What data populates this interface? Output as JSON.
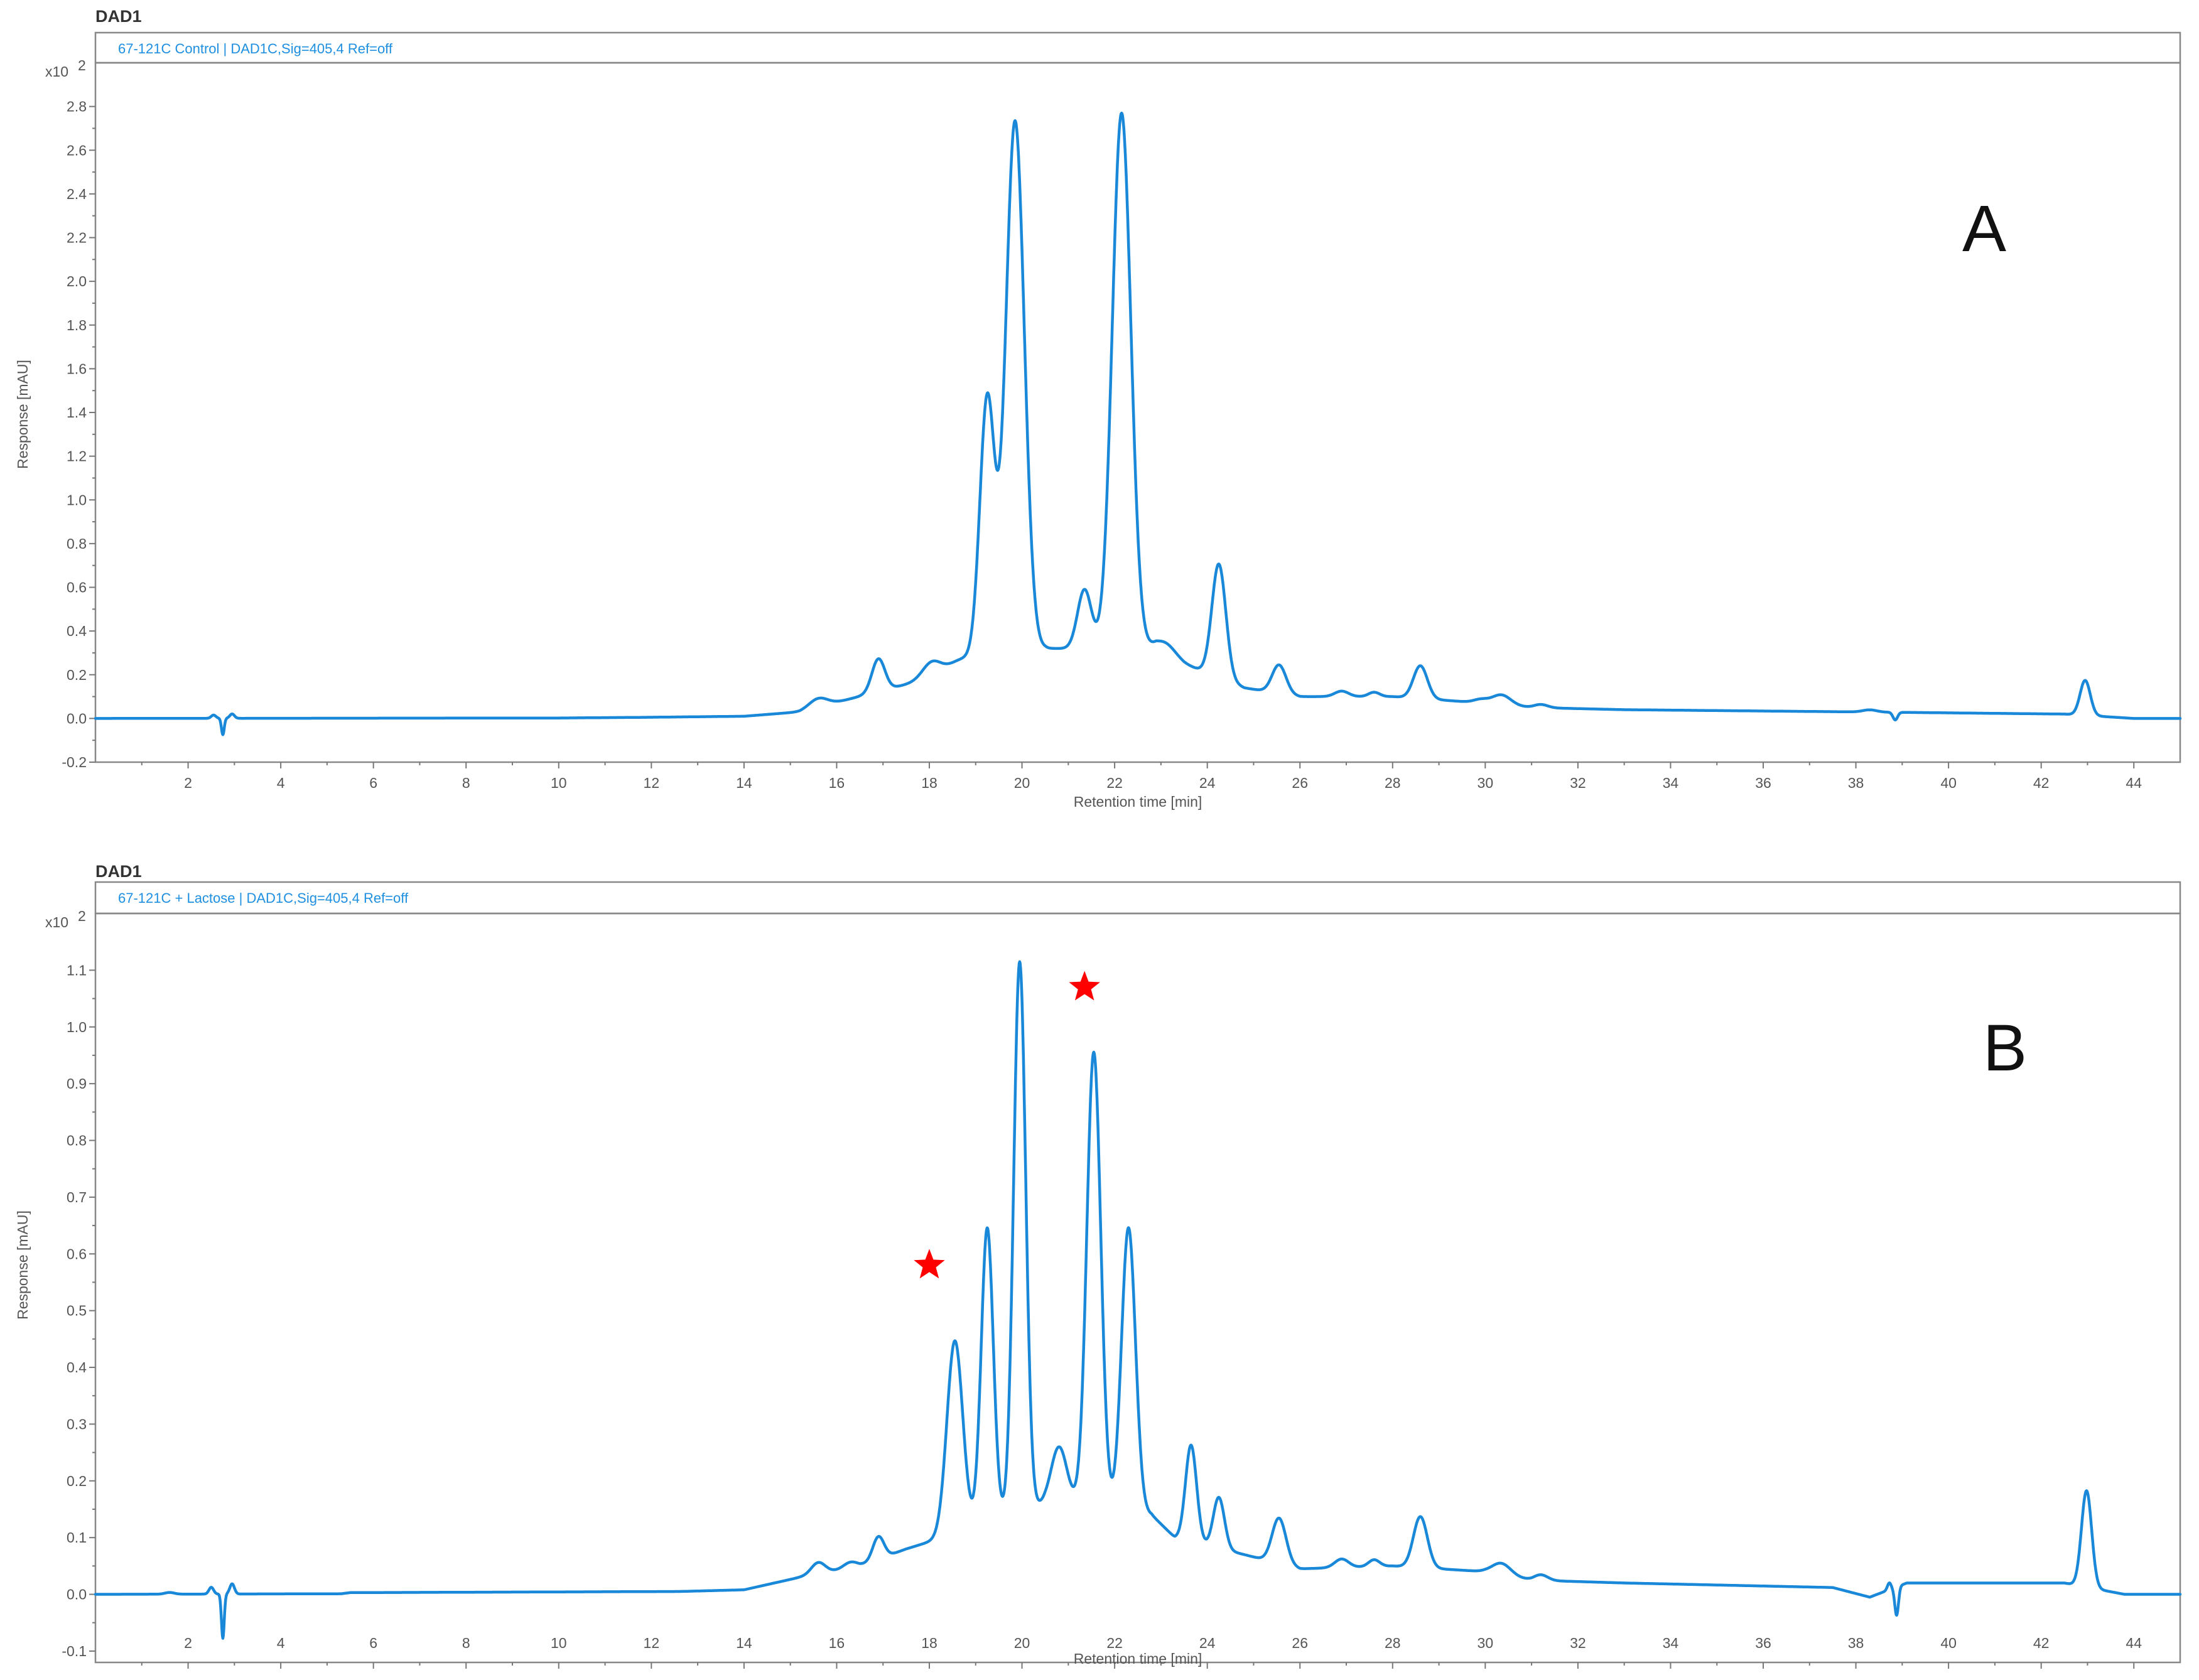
{
  "chart_data": [
    {
      "type": "line",
      "panel_title": "DAD1",
      "caption": "67-121C Control | DAD1C,Sig=405,4  Ref=off",
      "y_multiplier": "x10",
      "y_multiplier_exp": "2",
      "ylabel": "Response [mAU]",
      "xlabel": "Retention time [min]",
      "panel_letter": "A",
      "xlim": [
        0,
        45
      ],
      "ylim": [
        -0.2,
        3.0
      ],
      "x_ticks": [
        2,
        4,
        6,
        8,
        10,
        12,
        14,
        16,
        18,
        20,
        22,
        24,
        26,
        28,
        30,
        32,
        34,
        36,
        38,
        40,
        42,
        44
      ],
      "y_ticks": [
        -0.2,
        0.0,
        0.2,
        0.4,
        0.6,
        0.8,
        1.0,
        1.2,
        1.4,
        1.6,
        1.8,
        2.0,
        2.2,
        2.4,
        2.6,
        2.8
      ],
      "y_tick_labels": [
        "-0.2",
        "0.0",
        "0.2",
        "0.4",
        "0.6",
        "0.8",
        "1.0",
        "1.2",
        "1.4",
        "1.6",
        "1.8",
        "2.0",
        "2.2",
        "2.4",
        "2.6",
        "2.8"
      ],
      "baseline": [
        [
          0,
          0.0
        ],
        [
          10,
          0.002
        ],
        [
          11.8,
          0.005
        ],
        [
          14,
          0.01
        ],
        [
          15.2,
          0.03
        ],
        [
          20.5,
          0.32
        ],
        [
          22.9,
          0.32
        ],
        [
          23.5,
          0.25
        ],
        [
          24.8,
          0.14
        ],
        [
          26,
          0.1
        ],
        [
          28,
          0.1
        ],
        [
          30,
          0.07
        ],
        [
          31,
          0.05
        ],
        [
          33,
          0.04
        ],
        [
          38,
          0.03
        ],
        [
          42.5,
          0.02
        ],
        [
          44,
          0.0
        ],
        [
          45,
          0.0
        ]
      ],
      "peaks": [
        {
          "rt": 2.55,
          "height": 0.015,
          "width": 0.05
        },
        {
          "rt": 2.75,
          "height": -0.075,
          "width": 0.03
        },
        {
          "rt": 2.95,
          "height": 0.02,
          "width": 0.05
        },
        {
          "rt": 15.6,
          "height": 0.04,
          "width": 0.2
        },
        {
          "rt": 16.9,
          "height": 0.15,
          "width": 0.14
        },
        {
          "rt": 18.05,
          "height": 0.07,
          "width": 0.2
        },
        {
          "rt": 18.7,
          "height": 0.05,
          "width": 0.3
        },
        {
          "rt": 19.25,
          "height": 1.2,
          "width": 0.16
        },
        {
          "rt": 19.85,
          "height": 2.45,
          "width": 0.2
        },
        {
          "rt": 21.35,
          "height": 0.27,
          "width": 0.15
        },
        {
          "rt": 22.15,
          "height": 2.45,
          "width": 0.2
        },
        {
          "rt": 23.1,
          "height": 0.05,
          "width": 0.22
        },
        {
          "rt": 24.25,
          "height": 0.52,
          "width": 0.15
        },
        {
          "rt": 25.55,
          "height": 0.13,
          "width": 0.15
        },
        {
          "rt": 26.9,
          "height": 0.025,
          "width": 0.15
        },
        {
          "rt": 27.6,
          "height": 0.02,
          "width": 0.12
        },
        {
          "rt": 28.6,
          "height": 0.15,
          "width": 0.15
        },
        {
          "rt": 29.9,
          "height": 0.015,
          "width": 0.15
        },
        {
          "rt": 30.35,
          "height": 0.045,
          "width": 0.2
        },
        {
          "rt": 31.2,
          "height": 0.015,
          "width": 0.15
        },
        {
          "rt": 38.3,
          "height": 0.01,
          "width": 0.15
        },
        {
          "rt": 38.85,
          "height": -0.035,
          "width": 0.05
        },
        {
          "rt": 42.95,
          "height": 0.16,
          "width": 0.11
        }
      ]
    },
    {
      "type": "line",
      "panel_title": "DAD1",
      "caption": "67-121C + Lactose  | DAD1C,Sig=405,4  Ref=off",
      "y_multiplier": "x10",
      "y_multiplier_exp": "2",
      "ylabel": "Response [mAU]",
      "xlabel": "Retention time [min]",
      "panel_letter": "B",
      "xlim": [
        0,
        45
      ],
      "ylim": [
        -0.12,
        1.2
      ],
      "x_ticks": [
        2,
        4,
        6,
        8,
        10,
        12,
        14,
        16,
        18,
        20,
        22,
        24,
        26,
        28,
        30,
        32,
        34,
        36,
        38,
        40,
        42,
        44
      ],
      "y_ticks": [
        -0.1,
        0.0,
        0.1,
        0.2,
        0.3,
        0.4,
        0.5,
        0.6,
        0.7,
        0.8,
        0.9,
        1.0,
        1.1
      ],
      "y_tick_labels": [
        "-0.1",
        "0.0",
        "0.1",
        "0.2",
        "0.3",
        "0.4",
        "0.5",
        "0.6",
        "0.7",
        "0.8",
        "0.9",
        "1.0",
        "1.1"
      ],
      "baseline": [
        [
          0,
          0.0
        ],
        [
          5.3,
          0.001
        ],
        [
          5.5,
          0.003
        ],
        [
          12.6,
          0.005
        ],
        [
          14,
          0.008
        ],
        [
          15.2,
          0.03
        ],
        [
          16.5,
          0.05
        ],
        [
          17.5,
          0.08
        ],
        [
          18.3,
          0.1
        ],
        [
          20.5,
          0.16
        ],
        [
          21.2,
          0.16
        ],
        [
          22.8,
          0.14
        ],
        [
          23.3,
          0.1
        ],
        [
          24.8,
          0.07
        ],
        [
          26,
          0.045
        ],
        [
          28,
          0.05
        ],
        [
          30,
          0.04
        ],
        [
          31,
          0.025
        ],
        [
          33,
          0.02
        ],
        [
          37.5,
          0.012
        ],
        [
          38.3,
          -0.005
        ],
        [
          39.1,
          0.02
        ],
        [
          42.5,
          0.02
        ],
        [
          43.8,
          0.0
        ],
        [
          45,
          0.0
        ]
      ],
      "peaks": [
        {
          "rt": 1.6,
          "height": 0.003,
          "width": 0.1
        },
        {
          "rt": 2.5,
          "height": 0.012,
          "width": 0.05
        },
        {
          "rt": 2.75,
          "height": -0.078,
          "width": 0.03
        },
        {
          "rt": 2.95,
          "height": 0.018,
          "width": 0.05
        },
        {
          "rt": 15.6,
          "height": 0.02,
          "width": 0.15
        },
        {
          "rt": 16.3,
          "height": 0.01,
          "width": 0.15
        },
        {
          "rt": 16.9,
          "height": 0.04,
          "width": 0.12
        },
        {
          "rt": 18.55,
          "height": 0.34,
          "width": 0.17
        },
        {
          "rt": 19.25,
          "height": 0.52,
          "width": 0.13
        },
        {
          "rt": 19.95,
          "height": 0.97,
          "width": 0.13
        },
        {
          "rt": 20.8,
          "height": 0.1,
          "width": 0.17
        },
        {
          "rt": 21.55,
          "height": 0.8,
          "width": 0.15
        },
        {
          "rt": 22.3,
          "height": 0.5,
          "width": 0.15
        },
        {
          "rt": 23.65,
          "height": 0.17,
          "width": 0.12
        },
        {
          "rt": 24.25,
          "height": 0.09,
          "width": 0.12
        },
        {
          "rt": 25.55,
          "height": 0.08,
          "width": 0.15
        },
        {
          "rt": 26.9,
          "height": 0.015,
          "width": 0.15
        },
        {
          "rt": 27.6,
          "height": 0.012,
          "width": 0.12
        },
        {
          "rt": 28.6,
          "height": 0.09,
          "width": 0.15
        },
        {
          "rt": 30.35,
          "height": 0.02,
          "width": 0.2
        },
        {
          "rt": 31.2,
          "height": 0.01,
          "width": 0.15
        },
        {
          "rt": 38.72,
          "height": 0.012,
          "width": 0.04
        },
        {
          "rt": 38.88,
          "height": -0.05,
          "width": 0.04
        },
        {
          "rt": 42.98,
          "height": 0.17,
          "width": 0.11
        }
      ],
      "annotations": [
        {
          "marker": "star",
          "color": "#ff0000",
          "x": 18.0,
          "y": 0.58
        },
        {
          "marker": "star",
          "color": "#ff0000",
          "x": 21.35,
          "y": 1.07
        }
      ]
    }
  ]
}
